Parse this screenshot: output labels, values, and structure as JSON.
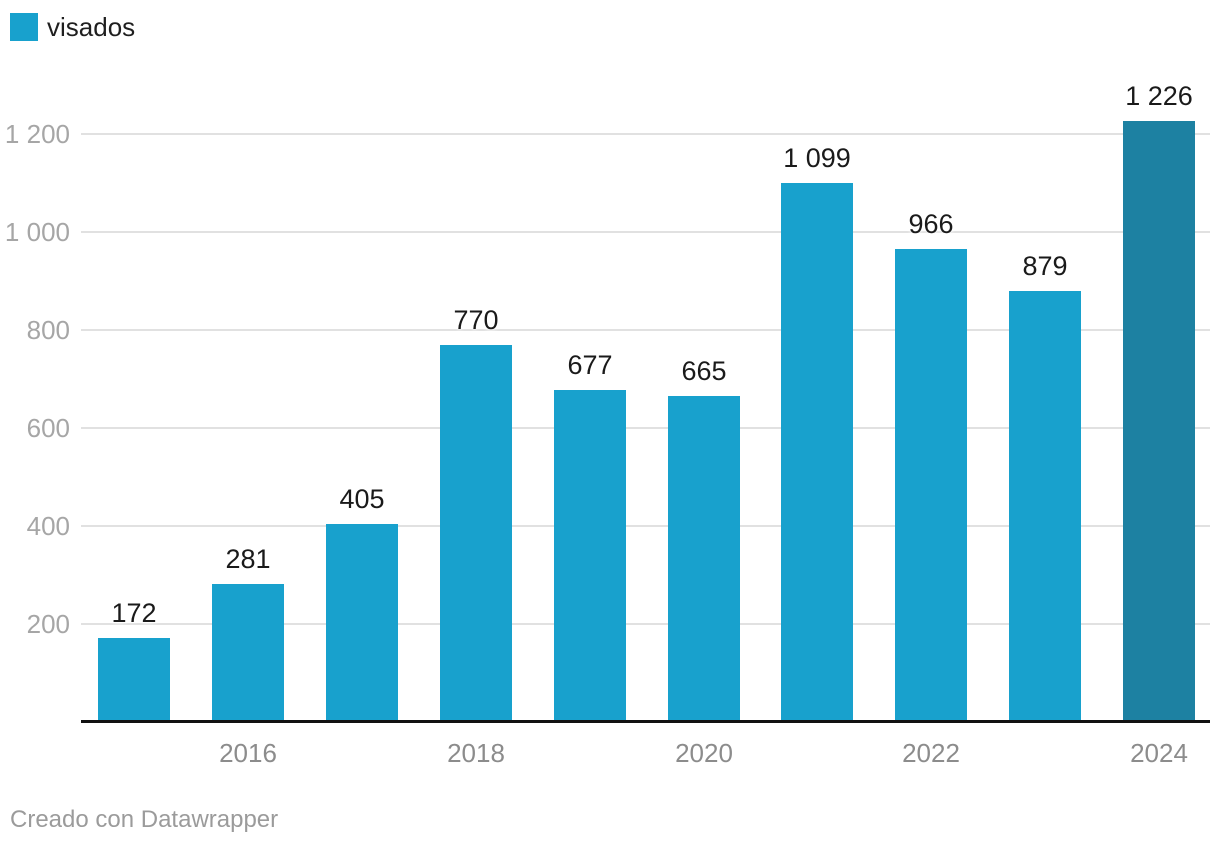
{
  "legend": {
    "label": "visados",
    "swatch_color": "#18a1cd"
  },
  "footer": {
    "credit": "Creado con Datawrapper"
  },
  "colors": {
    "bar": "#18a1cd",
    "bar_highlight": "#1d81a2",
    "gridline": "#e1e1e1",
    "axis_line": "#111111",
    "y_tick_label": "#a6a6a6",
    "x_tick_label": "#8c8c8c",
    "value_label": "#1a1a1a",
    "background": "#ffffff"
  },
  "chart_data": {
    "type": "bar",
    "title": "",
    "xlabel": "",
    "ylabel": "",
    "legend_position": "top-left",
    "legend_entries": [
      "visados"
    ],
    "grid": true,
    "categories": [
      "2015",
      "2016",
      "2017",
      "2018",
      "2019",
      "2020",
      "2021",
      "2022",
      "2023",
      "2024"
    ],
    "series": [
      {
        "name": "visados",
        "values": [
          172,
          281,
          405,
          770,
          677,
          665,
          1099,
          966,
          879,
          1226
        ]
      }
    ],
    "value_labels": [
      "172",
      "281",
      "405",
      "770",
      "677",
      "665",
      "1 099",
      "966",
      "879",
      "1 226"
    ],
    "x_tick_labels": [
      {
        "label": "2016",
        "category_index": 1
      },
      {
        "label": "2018",
        "category_index": 3
      },
      {
        "label": "2020",
        "category_index": 5
      },
      {
        "label": "2022",
        "category_index": 7
      },
      {
        "label": "2024",
        "category_index": 9
      }
    ],
    "y_ticks": [
      {
        "value": 200,
        "label": "200"
      },
      {
        "value": 400,
        "label": "400"
      },
      {
        "value": 600,
        "label": "600"
      },
      {
        "value": 800,
        "label": "800"
      },
      {
        "value": 1000,
        "label": "1 000"
      },
      {
        "value": 1200,
        "label": "1 200"
      }
    ],
    "ylim": [
      0,
      1255
    ],
    "highlight_index": 9
  }
}
